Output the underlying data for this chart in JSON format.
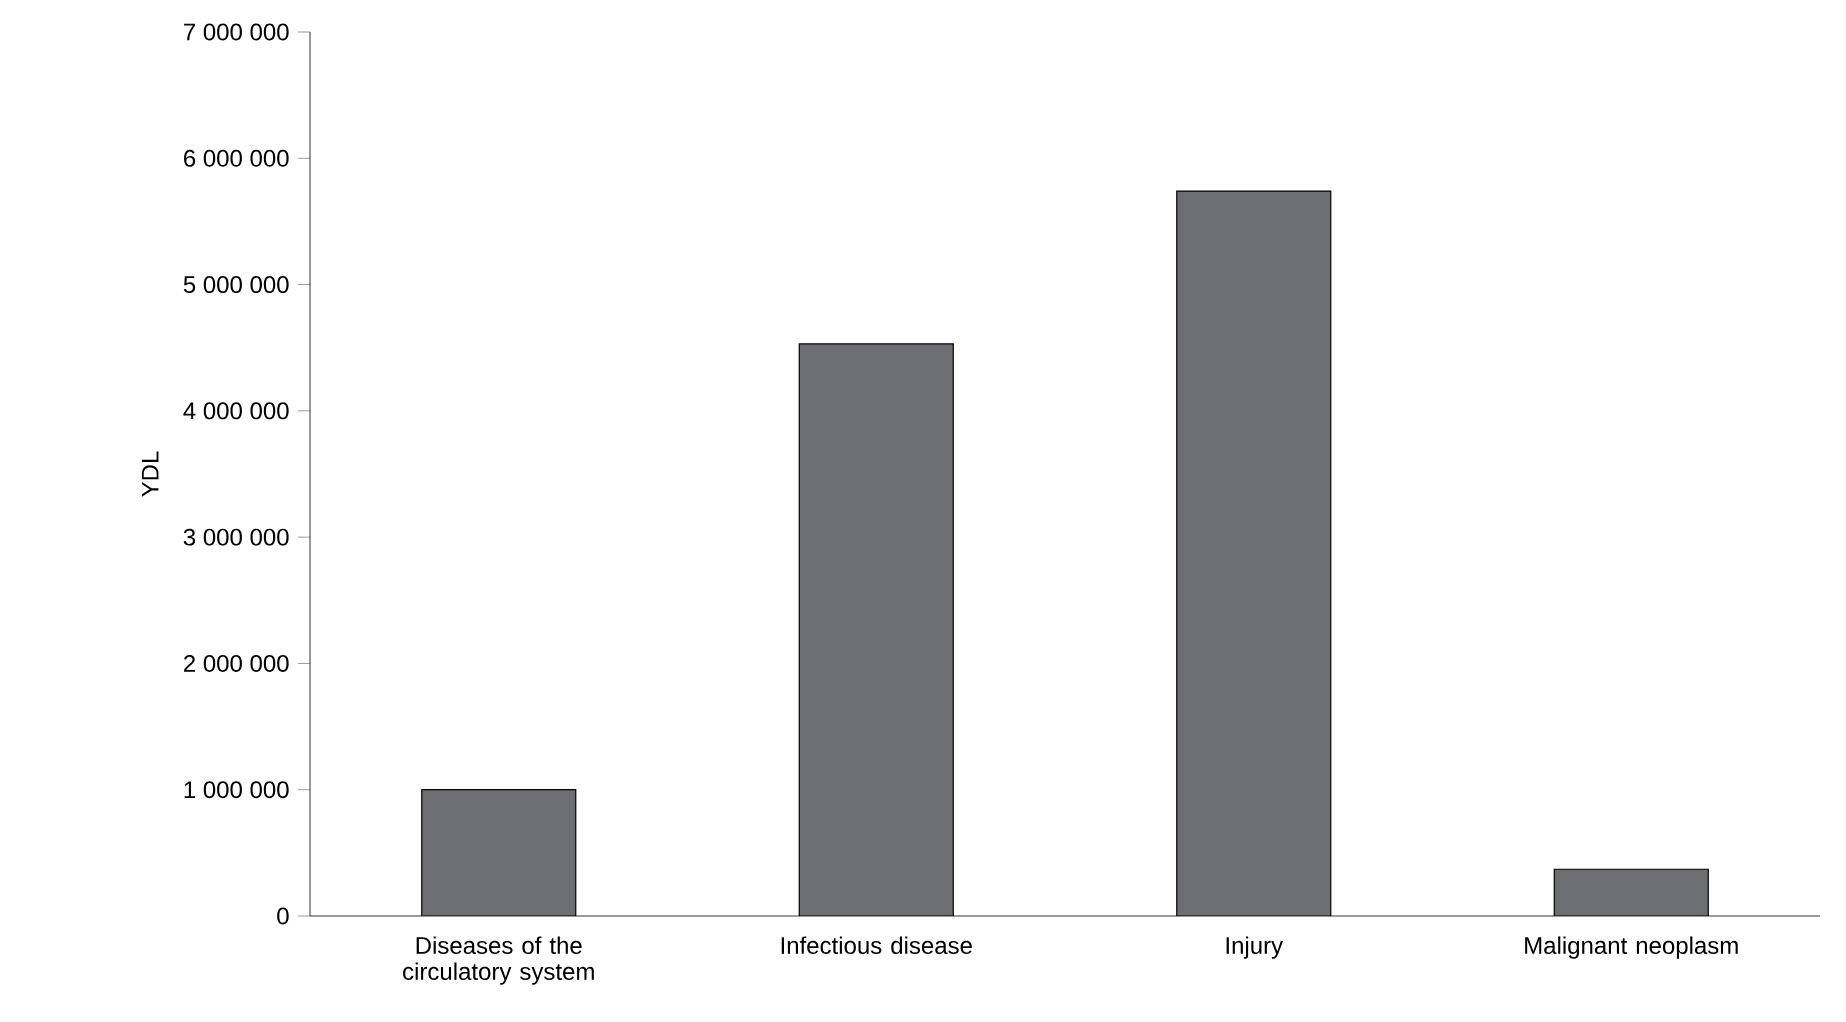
{
  "chart_data": {
    "type": "bar",
    "ylabel": "YDL",
    "categories": [
      "Diseases of the circulatory system",
      "Infectious disease",
      "Injury",
      "Malignant neoplasm"
    ],
    "values": [
      1000000,
      4530000,
      5740000,
      370000
    ],
    "color": "#6d6e71",
    "ylim": [
      0,
      7000000
    ],
    "yticks": [
      {
        "value": 0,
        "label": "0"
      },
      {
        "value": 1000000,
        "label": "1 000 000"
      },
      {
        "value": 2000000,
        "label": "2 000 000"
      },
      {
        "value": 3000000,
        "label": "3 000 000"
      },
      {
        "value": 4000000,
        "label": "4 000 000"
      },
      {
        "value": 5000000,
        "label": "5 000 000"
      },
      {
        "value": 6000000,
        "label": "6 000 000"
      },
      {
        "value": 7000000,
        "label": "7 000 000"
      }
    ],
    "grid": false
  }
}
